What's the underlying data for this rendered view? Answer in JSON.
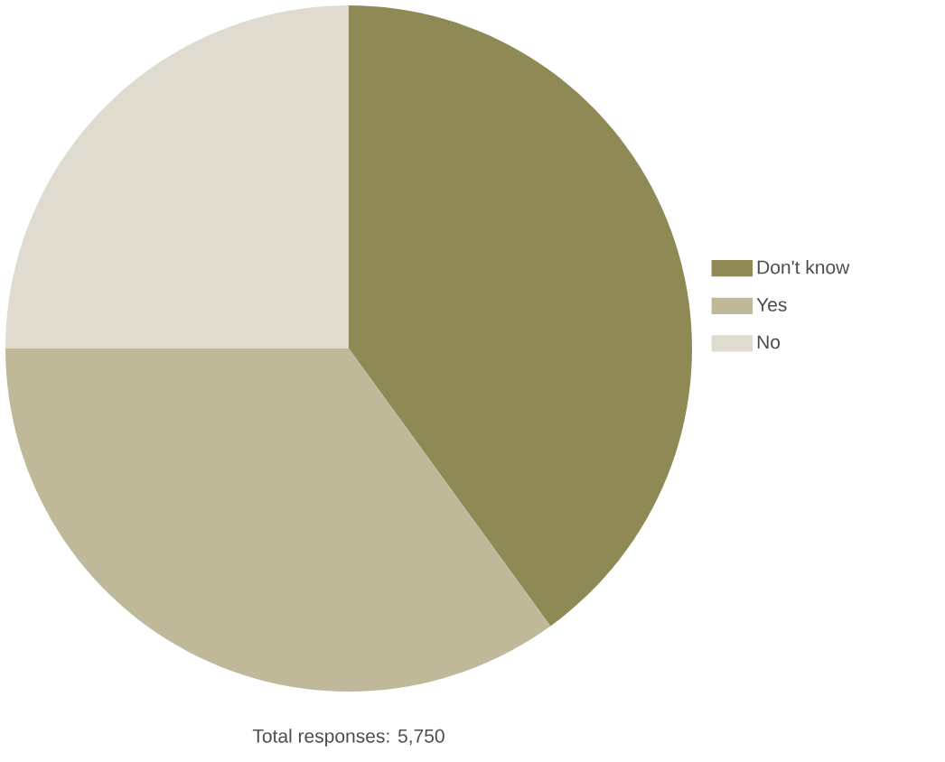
{
  "chart_data": {
    "type": "pie",
    "categories": [
      "Don't know",
      "Yes",
      "No"
    ],
    "values": [
      40,
      35,
      25
    ],
    "colors": [
      "#8f8a55",
      "#bfb99a",
      "#dfdccf"
    ],
    "legend": "right",
    "annotations": [
      "Total responses: 5,750"
    ]
  }
}
